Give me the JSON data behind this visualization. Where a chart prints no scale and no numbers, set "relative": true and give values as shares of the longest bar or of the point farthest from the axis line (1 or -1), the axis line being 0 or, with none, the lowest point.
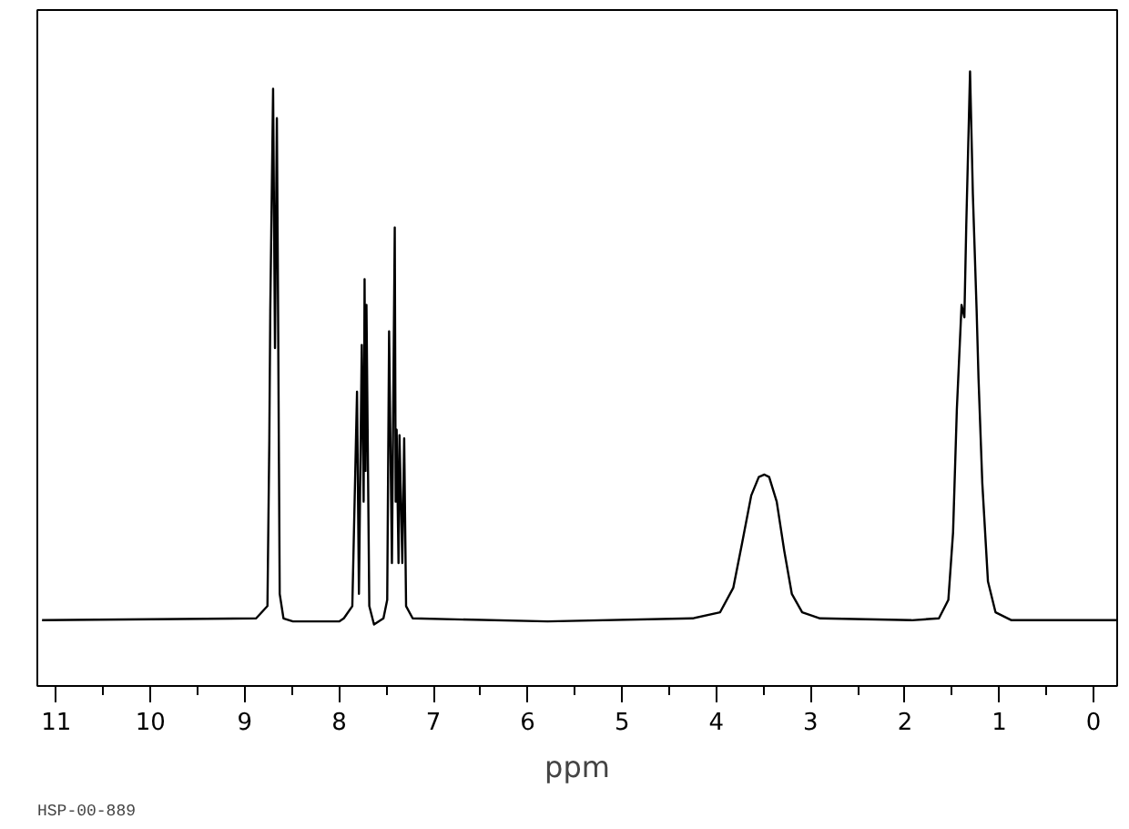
{
  "chart_data": {
    "type": "line",
    "relative": true,
    "xlabel": "ppm",
    "annotations": [
      "HSP-00-889"
    ],
    "xlim": [
      11.2,
      -0.25
    ],
    "xticks": [
      11,
      {
        "value": 10.5,
        "label": null
      },
      10,
      {
        "value": 9.5,
        "label": null
      },
      9,
      {
        "value": 8.5,
        "label": null
      },
      8,
      {
        "value": 7.5,
        "label": null
      },
      7,
      {
        "value": 6.5,
        "label": null
      },
      6,
      {
        "value": 5.5,
        "label": null
      },
      5,
      {
        "value": 4.5,
        "label": null
      },
      4,
      {
        "value": 3.5,
        "label": null
      },
      3,
      {
        "value": 2.5,
        "label": null
      },
      2,
      {
        "value": 1.5,
        "label": null
      },
      1,
      {
        "value": 0.5,
        "label": null
      },
      0
    ],
    "series": [
      {
        "color": "#000000",
        "x": [
          11.15,
          8.88,
          8.76,
          8.74,
          8.73,
          8.7,
          8.68,
          8.66,
          8.65,
          8.63,
          8.59,
          8.49,
          8.0,
          7.95,
          7.86,
          7.81,
          7.79,
          7.76,
          7.74,
          7.73,
          7.72,
          7.71,
          7.68,
          7.63,
          7.53,
          7.49,
          7.47,
          7.44,
          7.41,
          7.4,
          7.39,
          7.37,
          7.36,
          7.33,
          7.31,
          7.29,
          7.22,
          5.79,
          4.25,
          3.96,
          3.82,
          3.73,
          3.63,
          3.55,
          3.49,
          3.44,
          3.36,
          3.28,
          3.2,
          3.09,
          2.9,
          1.93,
          1.64,
          1.54,
          1.49,
          1.45,
          1.4,
          1.37,
          1.35,
          1.31,
          1.28,
          1.24,
          1.22,
          1.18,
          1.12,
          1.04,
          0.87,
          -0.25
        ],
        "values": [
          0.107,
          0.11,
          0.13,
          0.4,
          0.61,
          0.972,
          0.55,
          0.924,
          0.684,
          0.15,
          0.11,
          0.105,
          0.105,
          0.11,
          0.13,
          0.479,
          0.15,
          0.555,
          0.3,
          0.662,
          0.35,
          0.62,
          0.13,
          0.1,
          0.11,
          0.14,
          0.577,
          0.2,
          0.746,
          0.3,
          0.417,
          0.2,
          0.408,
          0.2,
          0.403,
          0.13,
          0.11,
          0.105,
          0.11,
          0.12,
          0.16,
          0.23,
          0.31,
          0.34,
          0.344,
          0.34,
          0.3,
          0.22,
          0.15,
          0.12,
          0.11,
          0.107,
          0.11,
          0.14,
          0.25,
          0.45,
          0.62,
          0.6,
          0.75,
          1.0,
          0.8,
          0.61,
          0.5,
          0.33,
          0.17,
          0.12,
          0.107,
          0.107
        ]
      }
    ]
  }
}
